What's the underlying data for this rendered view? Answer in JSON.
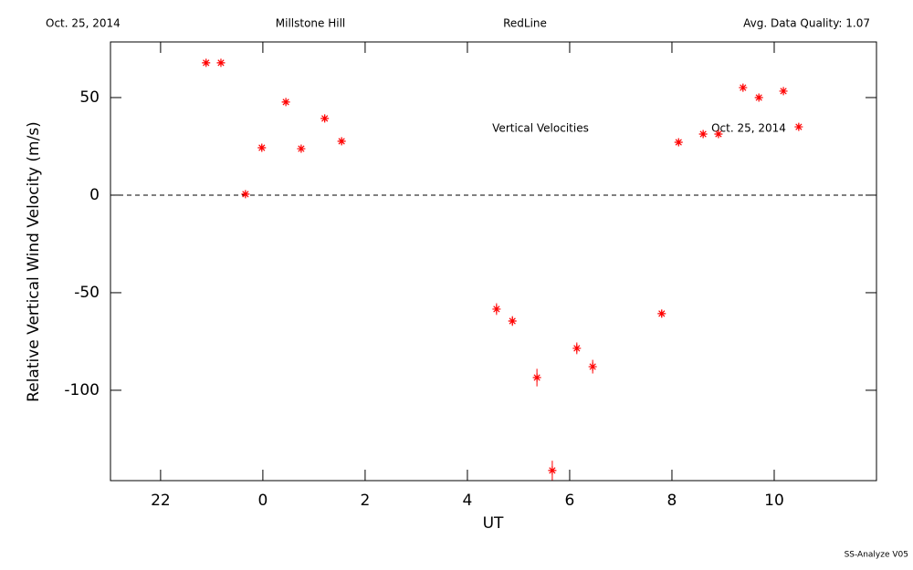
{
  "header": {
    "date": "Oct. 25, 2014",
    "site": "Millstone Hill",
    "line": "RedLine",
    "quality": "Avg. Data Quality: 1.07"
  },
  "footer": "SS-Analyze V05",
  "chart_data": {
    "type": "scatter",
    "annotations": [
      "Vertical Velocities",
      "Oct. 25, 2014"
    ],
    "x_label": "UT",
    "y_label": "Relative Vertical Wind Velocity (m/s)",
    "color": "#ff0000",
    "x": [
      -1.11,
      -0.82,
      -0.34,
      -0.02,
      0.45,
      0.75,
      1.21,
      1.54,
      4.57,
      4.88,
      5.36,
      5.66,
      6.14,
      6.45,
      7.8,
      8.13,
      8.61,
      8.91,
      9.39,
      9.7,
      10.18,
      10.48
    ],
    "values": [
      67.8,
      67.8,
      0.5,
      24.3,
      47.7,
      23.8,
      39.3,
      27.6,
      -58.4,
      -64.5,
      -93.5,
      -141.1,
      -78.5,
      -87.9,
      -60.7,
      27.1,
      31.3,
      31.3,
      55.1,
      50.0,
      53.3,
      35.0
    ],
    "errors": [
      1.5,
      1.5,
      1.5,
      1.5,
      1.5,
      1.5,
      1.5,
      1.5,
      3,
      2.5,
      4.5,
      5,
      3,
      3.5,
      2,
      1.5,
      1.5,
      1.5,
      1.5,
      1.5,
      1.5,
      1.5
    ],
    "xlim": [
      -2.98,
      12
    ],
    "ylim": [
      -146.3,
      78.5
    ],
    "xticks": [
      {
        "value": -2,
        "label": "22"
      },
      0,
      2,
      4,
      6,
      8,
      10
    ],
    "yticks": [
      -100,
      -50,
      0,
      50
    ],
    "reference_line": 0
  }
}
